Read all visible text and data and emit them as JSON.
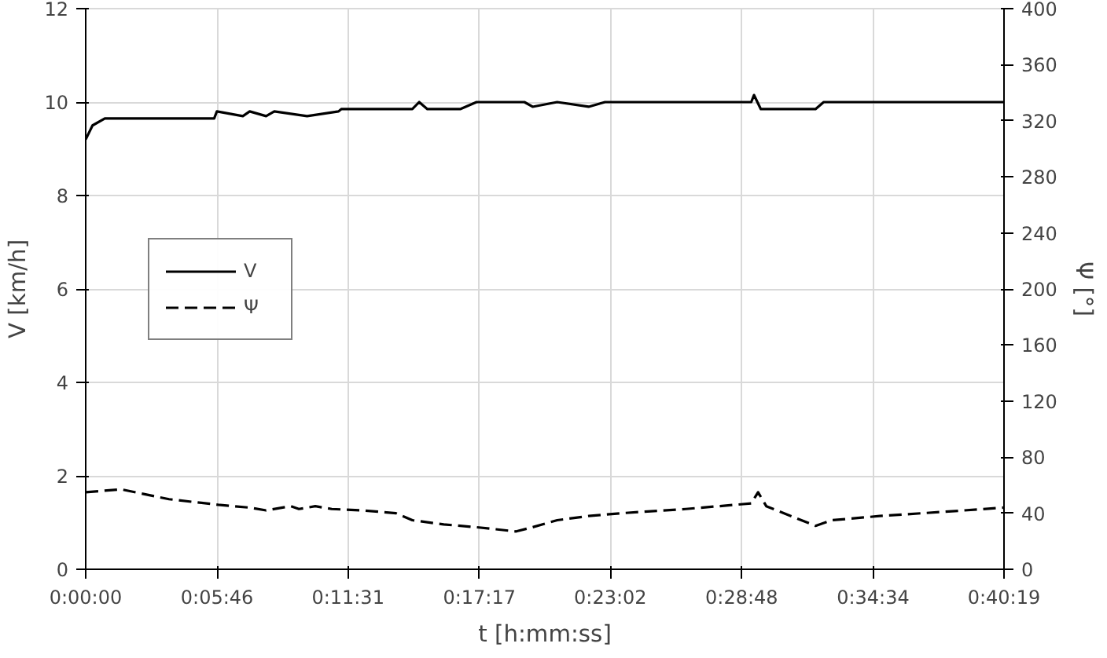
{
  "chart_data": {
    "type": "line",
    "xlabel": "t [h:mm:ss]",
    "ylabel": "V [km/h]",
    "y2label": "Ψ [°]",
    "xlim": [
      0,
      0.67194
    ],
    "xticks": [
      {
        "value": 0,
        "label": "0:00:00"
      },
      {
        "value": 0.09611,
        "label": "0:05:46"
      },
      {
        "value": 0.19194,
        "label": "0:11:31"
      },
      {
        "value": 0.28806,
        "label": "0:17:17"
      },
      {
        "value": 0.38389,
        "label": "0:23:02"
      },
      {
        "value": 0.48,
        "label": "0:28:48"
      },
      {
        "value": 0.57611,
        "label": "0:34:34"
      },
      {
        "value": 0.67194,
        "label": "0:40:19"
      }
    ],
    "ylim": [
      0,
      12
    ],
    "yticks": [
      0,
      2,
      4,
      6,
      8,
      10,
      12
    ],
    "y2lim": [
      0,
      400
    ],
    "y2ticks": [
      0,
      40,
      80,
      120,
      160,
      200,
      240,
      280,
      320,
      360,
      400
    ],
    "grid": true,
    "legend": "left",
    "marker": "none",
    "series": [
      {
        "name": "V",
        "color": "#000000",
        "line_style": "solid",
        "x": [
          0,
          0.005,
          0.014,
          0.094,
          0.096,
          0.115,
          0.12,
          0.132,
          0.138,
          0.162,
          0.185,
          0.187,
          0.239,
          0.244,
          0.25,
          0.274,
          0.286,
          0.321,
          0.327,
          0.345,
          0.368,
          0.38,
          0.487,
          0.489,
          0.494,
          0.534,
          0.54,
          0.581,
          0.6719
        ],
        "values": [
          9.2,
          9.5,
          9.65,
          9.65,
          9.8,
          9.7,
          9.8,
          9.7,
          9.8,
          9.7,
          9.8,
          9.85,
          9.85,
          10,
          9.85,
          9.85,
          10,
          10,
          9.9,
          10,
          9.9,
          10,
          10,
          10.15,
          9.85,
          9.85,
          10,
          10,
          10
        ]
      },
      {
        "name": "Ψ",
        "color": "#000000",
        "line_style": "dashed",
        "axis": "y2",
        "x": [
          0,
          0.026,
          0.061,
          0.097,
          0.12,
          0.132,
          0.15,
          0.156,
          0.168,
          0.18,
          0.203,
          0.227,
          0.239,
          0.262,
          0.286,
          0.315,
          0.327,
          0.345,
          0.368,
          0.392,
          0.439,
          0.487,
          0.492,
          0.498,
          0.516,
          0.534,
          0.546,
          0.581,
          0.628,
          0.6719
        ],
        "values": [
          55,
          57,
          50,
          46,
          44,
          42,
          45,
          43,
          45,
          43,
          42,
          40,
          35,
          32,
          30,
          27,
          30,
          35,
          38,
          40,
          43,
          47,
          55,
          45,
          38,
          31,
          35,
          38,
          41,
          44
        ]
      }
    ]
  }
}
